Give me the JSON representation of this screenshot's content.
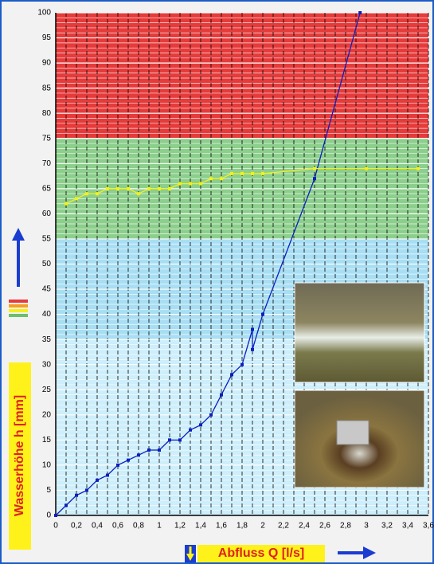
{
  "chart_data": {
    "type": "line",
    "x_label": "Abfluss Q [l/s]",
    "y_label": "Wasserhöhe h [mm]",
    "xlim": [
      0,
      3.6
    ],
    "ylim": [
      0,
      100
    ],
    "xticks": [
      0,
      {
        "value": 0.2,
        "label": "0,2"
      },
      {
        "value": 0.4,
        "label": "0,4"
      },
      {
        "value": 0.6,
        "label": "0,6"
      },
      {
        "value": 0.8,
        "label": "0,8"
      },
      1,
      {
        "value": 1.2,
        "label": "1,2"
      },
      {
        "value": 1.4,
        "label": "1,4"
      },
      {
        "value": 1.6,
        "label": "1,6"
      },
      {
        "value": 1.8,
        "label": "1,8"
      },
      2,
      {
        "value": 2.2,
        "label": "2,2"
      },
      {
        "value": 2.4,
        "label": "2,4"
      },
      {
        "value": 2.6,
        "label": "2,6"
      },
      {
        "value": 2.8,
        "label": "2,8"
      },
      3,
      {
        "value": 3.2,
        "label": "3,2"
      },
      {
        "value": 3.4,
        "label": "3,4"
      },
      {
        "value": 3.6,
        "label": "3,6"
      }
    ],
    "yticks": [
      0,
      5,
      10,
      15,
      20,
      25,
      30,
      35,
      40,
      45,
      50,
      55,
      60,
      65,
      70,
      75,
      80,
      85,
      90,
      95,
      100
    ],
    "bands": [
      {
        "from": 0,
        "to": 35,
        "color": "#cdeefb"
      },
      {
        "from": 35,
        "to": 55,
        "color": "#a8def3"
      },
      {
        "from": 55,
        "to": 75,
        "color": "#8ccf8c"
      },
      {
        "from": 75,
        "to": 100,
        "color": "#e63b3b"
      }
    ],
    "series": [
      {
        "color": "#0a1fbf",
        "x": [
          0,
          0.1,
          0.2,
          0.3,
          0.4,
          0.5,
          0.6,
          0.7,
          0.8,
          0.9,
          1.0,
          1.1,
          1.2,
          1.3,
          1.4,
          1.5,
          1.6,
          1.7,
          1.8,
          1.9,
          1.9,
          2.0,
          2.5,
          2.94
        ],
        "values": [
          0,
          2,
          4,
          5,
          7,
          8,
          10,
          11,
          12,
          13,
          13,
          15,
          15,
          17,
          18,
          20,
          24,
          28,
          30,
          37,
          33,
          40,
          67,
          100
        ]
      },
      {
        "color": "#f5f01a",
        "x": [
          0.1,
          0.2,
          0.3,
          0.4,
          0.5,
          0.6,
          0.7,
          0.8,
          0.9,
          1.0,
          1.1,
          1.2,
          1.3,
          1.4,
          1.5,
          1.6,
          1.7,
          1.8,
          1.9,
          2.0,
          2.5,
          3.0,
          3.5
        ],
        "values": [
          62,
          63,
          64,
          64,
          65,
          65,
          65,
          64,
          65,
          65,
          65,
          66,
          66,
          66,
          67,
          67,
          68,
          68,
          68,
          68,
          69,
          69,
          69
        ]
      }
    ]
  }
}
